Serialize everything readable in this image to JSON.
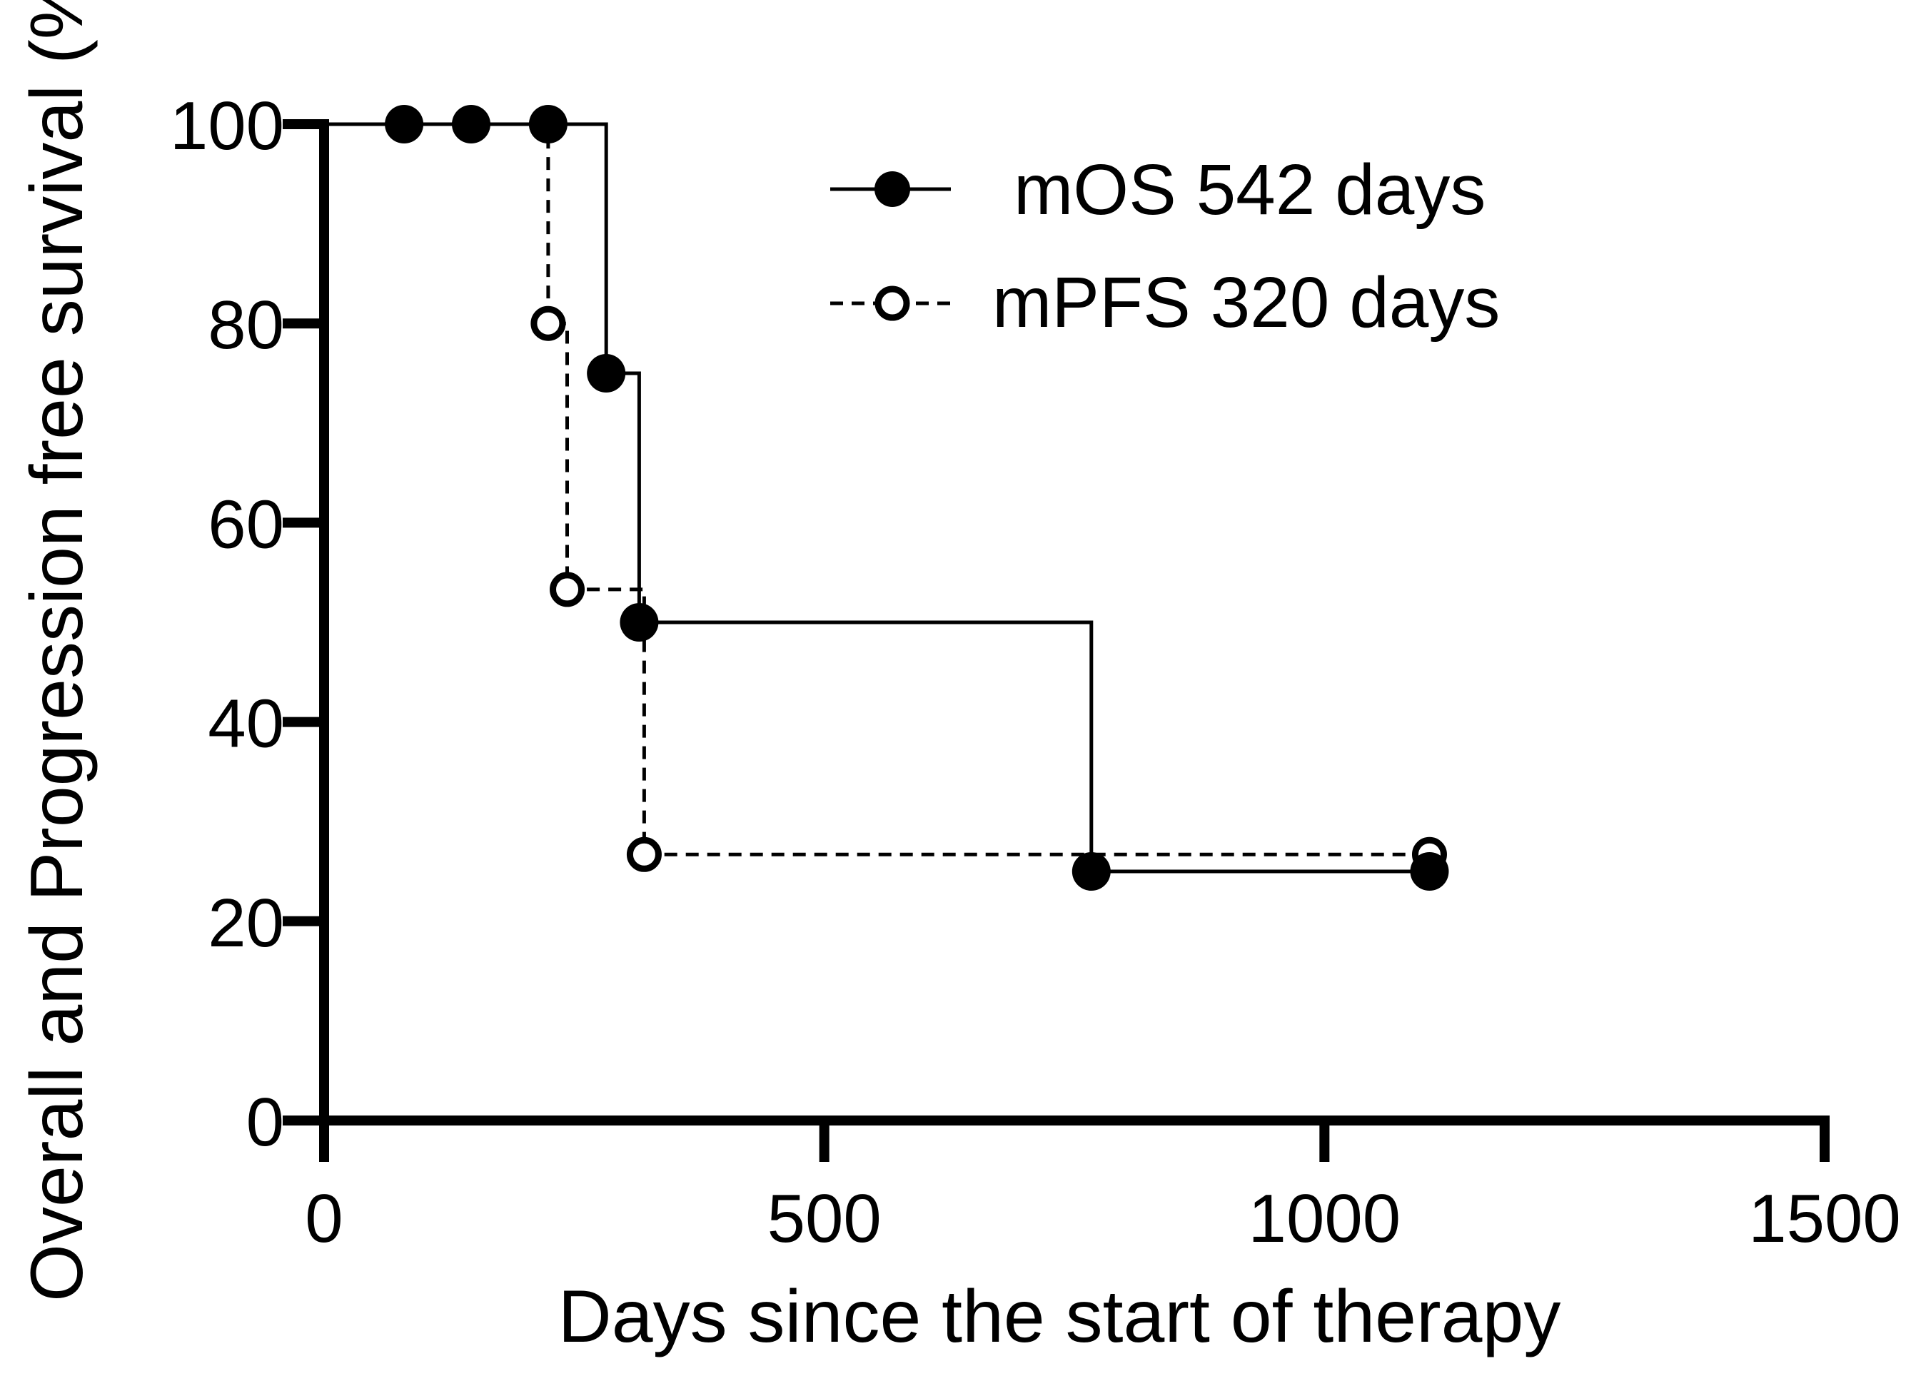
{
  "chart_data": {
    "type": "line",
    "title": "",
    "xlabel": "Days since the start of therapy",
    "ylabel": "Overall and Progression free survival (%)",
    "xlim": [
      0,
      1500
    ],
    "ylim": [
      0,
      100
    ],
    "xticks": [
      0,
      500,
      1000,
      1500
    ],
    "xtick_labels": [
      "0",
      "500",
      "1000",
      "1500"
    ],
    "yticks": [
      0,
      20,
      40,
      60,
      80,
      100
    ],
    "ytick_labels": [
      "0",
      "20",
      "40",
      "60",
      "80",
      "100"
    ],
    "legend_position": "top-right",
    "series": [
      {
        "name": "mOS 542 days",
        "key": "os",
        "style": "solid",
        "marker": "filled-circle",
        "color": "#000000",
        "steps": [
          [
            0,
            100
          ],
          [
            282,
            100
          ],
          [
            282,
            75
          ],
          [
            315,
            75
          ],
          [
            315,
            50
          ],
          [
            767,
            50
          ],
          [
            767,
            25
          ],
          [
            1105,
            25
          ]
        ],
        "markers": [
          [
            80,
            100
          ],
          [
            147,
            100
          ],
          [
            224,
            100
          ],
          [
            282,
            75
          ],
          [
            315,
            50
          ],
          [
            767,
            25
          ],
          [
            1105,
            25
          ]
        ]
      },
      {
        "name": "mPFS 320 days",
        "key": "pfs",
        "style": "dashed",
        "marker": "open-circle",
        "color": "#000000",
        "steps": [
          [
            0,
            100
          ],
          [
            224,
            100
          ],
          [
            224,
            80
          ],
          [
            243,
            80
          ],
          [
            243,
            53.3
          ],
          [
            320,
            53.3
          ],
          [
            320,
            26.7
          ],
          [
            1105,
            26.7
          ]
        ],
        "markers": [
          [
            224,
            80
          ],
          [
            243,
            53.3
          ],
          [
            320,
            26.7
          ],
          [
            1105,
            26.7
          ]
        ]
      }
    ]
  }
}
